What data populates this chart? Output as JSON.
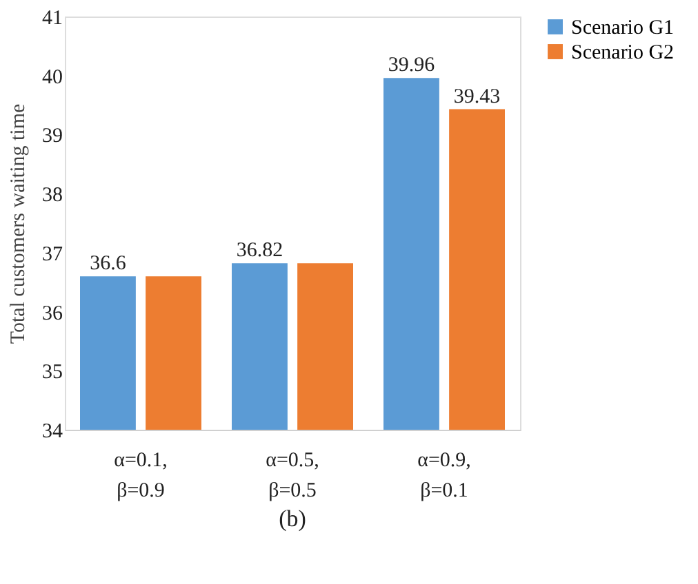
{
  "chart_data": {
    "type": "bar",
    "ylabel": "Total customers waiting time",
    "categories": [
      "α=0.1, β=0.9",
      "α=0.5, β=0.5",
      "α=0.9, β=0.1"
    ],
    "series": [
      {
        "name": "Scenario G1",
        "color": "#5b9bd5",
        "values": [
          36.6,
          36.82,
          39.96
        ],
        "value_labels": [
          "36.6",
          "36.82",
          "39.96"
        ]
      },
      {
        "name": "Scenario G2",
        "color": "#ed7d31",
        "values": [
          36.6,
          36.82,
          39.43
        ],
        "value_labels": [
          null,
          null,
          "39.43"
        ]
      }
    ],
    "ylim": [
      34,
      41
    ],
    "yticks": [
      34,
      35,
      36,
      37,
      38,
      39,
      40,
      41
    ],
    "grid": false,
    "legend": "right",
    "annotations": [
      "(b)"
    ]
  }
}
